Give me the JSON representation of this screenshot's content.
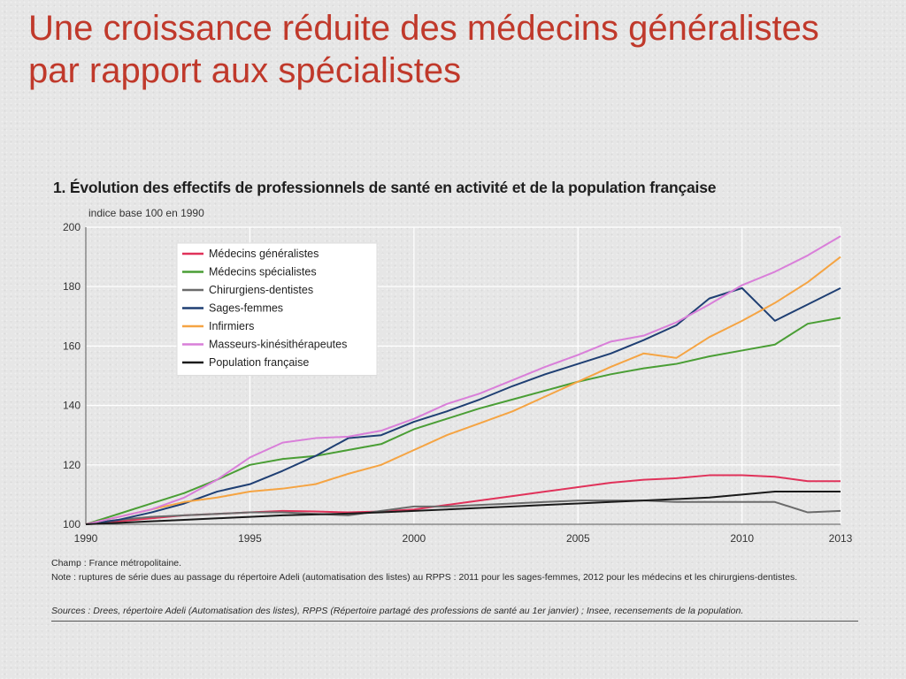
{
  "slide": {
    "title": "Une croissance réduite des médecins généralistes par rapport aux spécialistes"
  },
  "chart_data": {
    "type": "line",
    "title": "1. Évolution des effectifs de professionnels de santé en activité et de la population française",
    "ylabel": "indice base 100 en 1990",
    "xlabel": "",
    "ylim": [
      100,
      200
    ],
    "xlim": [
      1990,
      2013
    ],
    "yticks": [
      100,
      120,
      140,
      160,
      180,
      200
    ],
    "xticks": [
      1990,
      1995,
      2000,
      2005,
      2010,
      2013
    ],
    "grid": true,
    "legend_position": "top-left",
    "x": [
      1990,
      1991,
      1992,
      1993,
      1994,
      1995,
      1996,
      1997,
      1998,
      1999,
      2000,
      2001,
      2002,
      2003,
      2004,
      2005,
      2006,
      2007,
      2008,
      2009,
      2010,
      2011,
      2012,
      2013
    ],
    "series": [
      {
        "name": "Médecins généralistes",
        "color": "#e0325a",
        "values": [
          100,
          101,
          102,
          103,
          103.5,
          104,
          104.5,
          104.3,
          104,
          104.3,
          105,
          106.5,
          108,
          109.5,
          111,
          112.5,
          114,
          115,
          115.5,
          116.5,
          116.5,
          116,
          114.5,
          114.5
        ]
      },
      {
        "name": "Médecins spécialistes",
        "color": "#4a9e35",
        "values": [
          100,
          103.5,
          107,
          110.5,
          115,
          120,
          122,
          123,
          125,
          127,
          132,
          135.5,
          139,
          142,
          145,
          148,
          150.5,
          152.5,
          154,
          156.5,
          158.5,
          160.5,
          167.5,
          169.5
        ]
      },
      {
        "name": "Chirurgiens-dentistes",
        "color": "#6b6b6b",
        "values": [
          100,
          101.5,
          102.5,
          103,
          103.5,
          104,
          104,
          103.5,
          103,
          104.5,
          106,
          106,
          106.5,
          107,
          107.5,
          108,
          108,
          108,
          107.5,
          107.5,
          107.5,
          107.5,
          104,
          104.5
        ]
      },
      {
        "name": "Sages-femmes",
        "color": "#1f3f73",
        "values": [
          100,
          101.5,
          104,
          107,
          111,
          113.5,
          118,
          123,
          129,
          130,
          134.5,
          138,
          142,
          146.5,
          150.5,
          154,
          157.5,
          162,
          167,
          176,
          179.5,
          168.5,
          174,
          179.5
        ]
      },
      {
        "name": "Infirmiers",
        "color": "#f5a443",
        "values": [
          100,
          102.5,
          105,
          107.5,
          109,
          111,
          112,
          113.5,
          117,
          120,
          125,
          130,
          134,
          138,
          143,
          148,
          153,
          157.5,
          156,
          163,
          168.5,
          174.5,
          181.5,
          190
        ]
      },
      {
        "name": "Masseurs-kinésithérapeutes",
        "color": "#d97fd9",
        "values": [
          100,
          102.5,
          105,
          109,
          115,
          122.5,
          127.5,
          129,
          129.5,
          131.5,
          135.5,
          140.5,
          144,
          148.5,
          153,
          157,
          161.5,
          163.5,
          168,
          174,
          180.5,
          185,
          190.5,
          197
        ]
      },
      {
        "name": "Population française",
        "color": "#1a1a1a",
        "values": [
          100,
          100.5,
          101,
          101.5,
          102,
          102.5,
          103,
          103.3,
          103.6,
          104,
          104.5,
          105,
          105.5,
          106,
          106.5,
          107,
          107.5,
          108,
          108.5,
          109,
          110,
          111,
          111,
          111
        ]
      }
    ]
  },
  "notes": {
    "champ": "Champ : France métropolitaine.",
    "note": "Note : ruptures de série dues au passage du répertoire Adeli (automatisation des listes) au RPPS : 2011 pour les sages-femmes, 2012 pour les médecins et les chirurgiens-dentistes.",
    "sources": "Sources : Drees, répertoire Adeli (Automatisation des listes), RPPS (Répertoire partagé des professions de santé au 1er janvier) ; Insee, recensements de la population."
  }
}
